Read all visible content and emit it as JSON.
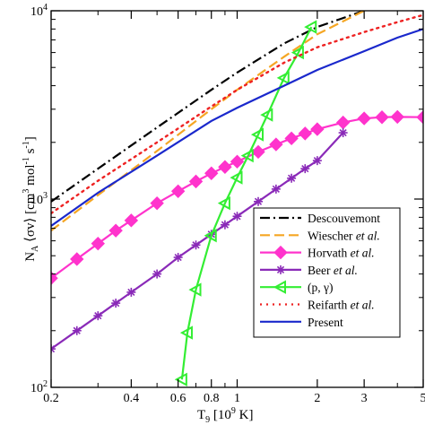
{
  "chart_data": {
    "type": "line",
    "xscale": "log",
    "yscale": "log",
    "xlim": [
      0.2,
      5
    ],
    "ylim": [
      100,
      10000
    ],
    "xticks": [
      {
        "value": 0.2,
        "label": "0.2"
      },
      {
        "value": 0.4,
        "label": "0.4"
      },
      {
        "value": 0.6,
        "label": "0.6"
      },
      {
        "value": 0.8,
        "label": "0.8"
      },
      {
        "value": 1,
        "label": "1"
      },
      {
        "value": 2,
        "label": "2"
      },
      {
        "value": 3,
        "label": "3"
      },
      {
        "value": 5,
        "label": "5"
      }
    ],
    "yticks": [
      {
        "value": 100,
        "base": "10",
        "exp": "2"
      },
      {
        "value": 1000,
        "base": "10",
        "exp": "3"
      },
      {
        "value": 10000,
        "base": "10",
        "exp": "4"
      }
    ],
    "xlabel": {
      "main": "T",
      "sub": "9",
      "unit": " [10",
      "unit_exp": "9",
      "unit_end": " K]"
    },
    "ylabel": "N_A <σv> [cm^3 mol^-1 s^-1]",
    "legend_position": "bottom-right",
    "series": [
      {
        "name": "Descouvemont",
        "color": "#000000",
        "style": "dashdot",
        "marker": "none",
        "x": [
          0.2,
          0.3,
          0.5,
          0.8,
          1.0,
          1.5,
          2.0,
          3.0
        ],
        "y": [
          970,
          1450,
          2400,
          3800,
          4700,
          6700,
          8200,
          10000
        ]
      },
      {
        "name": "Wiescher et al.",
        "color": "#f5a623",
        "style": "dash",
        "marker": "none",
        "x": [
          0.2,
          0.3,
          0.5,
          0.8,
          1.0,
          1.5,
          2.0,
          3.0
        ],
        "y": [
          680,
          1050,
          1800,
          3000,
          3800,
          5700,
          7500,
          10000
        ]
      },
      {
        "name": "Horvath et al.",
        "color": "#ff33cc",
        "style": "solid",
        "marker": "diamond",
        "x": [
          0.2,
          0.25,
          0.3,
          0.35,
          0.4,
          0.5,
          0.6,
          0.7,
          0.8,
          0.9,
          1.0,
          1.2,
          1.4,
          1.6,
          1.8,
          2.0,
          2.5,
          3.0,
          3.5,
          4.0,
          5.0
        ],
        "y": [
          380,
          480,
          580,
          680,
          770,
          950,
          1100,
          1240,
          1370,
          1480,
          1580,
          1780,
          1950,
          2100,
          2230,
          2350,
          2550,
          2680,
          2720,
          2730,
          2720
        ]
      },
      {
        "name": "Beer et al.",
        "color": "#8a2ab8",
        "style": "solid",
        "marker": "asterisk",
        "x": [
          0.2,
          0.25,
          0.3,
          0.35,
          0.4,
          0.5,
          0.6,
          0.7,
          0.8,
          0.9,
          1.0,
          1.2,
          1.4,
          1.6,
          1.8,
          2.0,
          2.5
        ],
        "y": [
          160,
          200,
          240,
          280,
          320,
          400,
          490,
          570,
          650,
          730,
          810,
          970,
          1130,
          1290,
          1450,
          1600,
          2250
        ]
      },
      {
        "name": "(p, γ)",
        "color": "#33ee33",
        "style": "solid",
        "marker": "triangle-left",
        "x": [
          0.62,
          0.65,
          0.7,
          0.8,
          0.9,
          1.0,
          1.1,
          1.2,
          1.3,
          1.5,
          1.7,
          1.9
        ],
        "y": [
          110,
          195,
          330,
          640,
          950,
          1300,
          1700,
          2200,
          2800,
          4400,
          6000,
          8200
        ]
      },
      {
        "name": "Reifarth et al.",
        "color": "#ee2222",
        "style": "dot",
        "marker": "none",
        "x": [
          0.2,
          0.3,
          0.5,
          0.8,
          1.0,
          1.5,
          2.0,
          3.0,
          4.0,
          5.0
        ],
        "y": [
          840,
          1250,
          2000,
          3100,
          3800,
          5300,
          6400,
          7700,
          8700,
          9500
        ]
      },
      {
        "name": "Present",
        "color": "#1a28cc",
        "style": "solid",
        "marker": "none",
        "x": [
          0.2,
          0.3,
          0.5,
          0.8,
          1.0,
          1.5,
          2.0,
          3.0,
          4.0,
          5.0
        ],
        "y": [
          720,
          1080,
          1700,
          2600,
          3050,
          4000,
          4850,
          6100,
          7200,
          8000
        ]
      }
    ]
  }
}
